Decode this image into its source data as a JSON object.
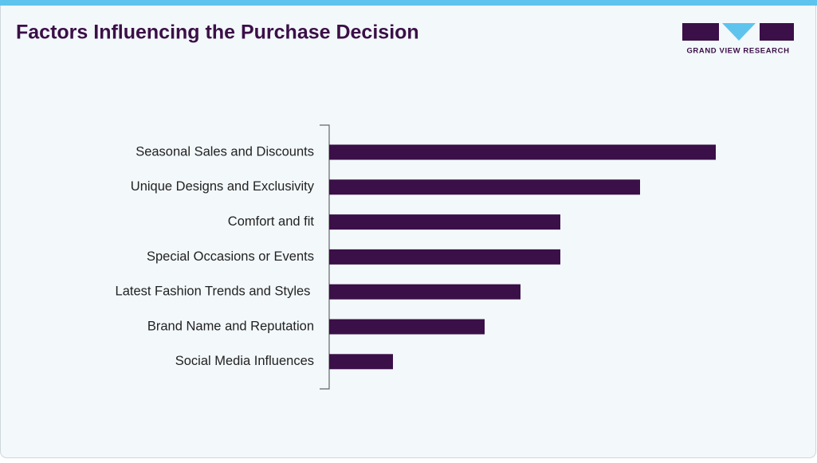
{
  "chart_data": {
    "type": "bar",
    "orientation": "horizontal",
    "title": "Factors Influencing the Purchase Decision",
    "brand": "GRAND VIEW RESEARCH",
    "categories": [
      "Seasonal Sales and Discounts",
      "Unique Designs and Exclusivity",
      "Comfort and fit",
      "Special Occasions or Events",
      "Latest Fashion Trends and Styles ",
      "Brand Name and Reputation",
      "Social Media Influences"
    ],
    "values": [
      97,
      78,
      58,
      58,
      48,
      39,
      16
    ],
    "color": "#3b0f47",
    "xlim": [
      0,
      100
    ]
  }
}
